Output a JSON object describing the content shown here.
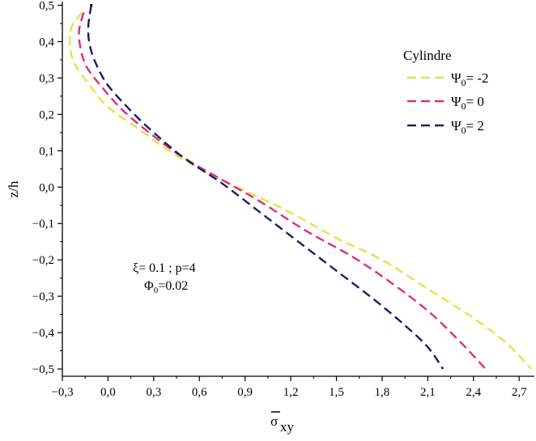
{
  "chart_data": {
    "type": "line",
    "title": "",
    "xlabel": "σ",
    "xlabel_subscript": "xy",
    "ylabel": "z/h",
    "xlim": [
      -0.3,
      2.8
    ],
    "ylim": [
      -0.52,
      0.51
    ],
    "x_ticks": [
      -0.3,
      0.0,
      0.3,
      0.6,
      0.9,
      1.2,
      1.5,
      1.8,
      2.1,
      2.4,
      2.7
    ],
    "x_tick_labels": [
      "−0,3",
      "0,0",
      "0,3",
      "0,6",
      "0,9",
      "1,2",
      "1,5",
      "1,8",
      "2,1",
      "2,4",
      "2,7"
    ],
    "y_ticks": [
      -0.5,
      -0.4,
      -0.3,
      -0.2,
      -0.1,
      0.0,
      0.1,
      0.2,
      0.3,
      0.4,
      0.5
    ],
    "y_tick_labels": [
      "−0,5",
      "−0,4",
      "−0,3",
      "−0,2",
      "−0,1",
      "0,0",
      "0,1",
      "0,2",
      "0,3",
      "0,4",
      "0,5"
    ],
    "legend": {
      "title": "Cylindre",
      "placement": "top-right",
      "entries": [
        {
          "symbol": "Ψ",
          "sub": "0",
          "text": "= -2"
        },
        {
          "symbol": "Ψ",
          "sub": "0",
          "text": "= 0"
        },
        {
          "symbol": "Ψ",
          "sub": "0",
          "text": "= 2"
        }
      ]
    },
    "annotations": [
      {
        "line1": "ξ= 0.1 ; p=4"
      },
      {
        "symbol": "Φ",
        "sub": "0",
        "text": "=0.02"
      }
    ],
    "series": [
      {
        "name": "Ψ0= -2",
        "color": "#dfe54a",
        "dash": "dashed",
        "points": [
          [
            -0.17,
            0.48
          ],
          [
            -0.24,
            0.44
          ],
          [
            -0.25,
            0.39
          ],
          [
            -0.22,
            0.34
          ],
          [
            -0.12,
            0.28
          ],
          [
            0.0,
            0.22
          ],
          [
            0.2,
            0.16
          ],
          [
            0.4,
            0.1
          ],
          [
            0.65,
            0.04
          ],
          [
            0.9,
            -0.01
          ],
          [
            1.2,
            -0.07
          ],
          [
            1.5,
            -0.14
          ],
          [
            1.8,
            -0.2
          ],
          [
            2.1,
            -0.28
          ],
          [
            2.4,
            -0.36
          ],
          [
            2.62,
            -0.43
          ],
          [
            2.78,
            -0.5
          ]
        ]
      },
      {
        "name": "Ψ0= 0",
        "color": "#e02d7c",
        "dash": "dashed",
        "points": [
          [
            -0.16,
            0.48
          ],
          [
            -0.19,
            0.43
          ],
          [
            -0.18,
            0.38
          ],
          [
            -0.14,
            0.33
          ],
          [
            -0.05,
            0.28
          ],
          [
            0.1,
            0.21
          ],
          [
            0.3,
            0.14
          ],
          [
            0.5,
            0.08
          ],
          [
            0.75,
            0.02
          ],
          [
            1.0,
            -0.04
          ],
          [
            1.3,
            -0.12
          ],
          [
            1.6,
            -0.19
          ],
          [
            1.85,
            -0.26
          ],
          [
            2.1,
            -0.34
          ],
          [
            2.3,
            -0.42
          ],
          [
            2.48,
            -0.5
          ]
        ]
      },
      {
        "name": "Ψ0= 2",
        "color": "#1c1c66",
        "dash": "dashed",
        "points": [
          [
            -0.11,
            0.5
          ],
          [
            -0.13,
            0.44
          ],
          [
            -0.12,
            0.39
          ],
          [
            -0.08,
            0.34
          ],
          [
            0.0,
            0.28
          ],
          [
            0.15,
            0.21
          ],
          [
            0.3,
            0.15
          ],
          [
            0.5,
            0.08
          ],
          [
            0.75,
            0.01
          ],
          [
            1.0,
            -0.07
          ],
          [
            1.25,
            -0.15
          ],
          [
            1.5,
            -0.23
          ],
          [
            1.75,
            -0.31
          ],
          [
            1.95,
            -0.38
          ],
          [
            2.1,
            -0.44
          ],
          [
            2.2,
            -0.5
          ]
        ]
      }
    ]
  }
}
